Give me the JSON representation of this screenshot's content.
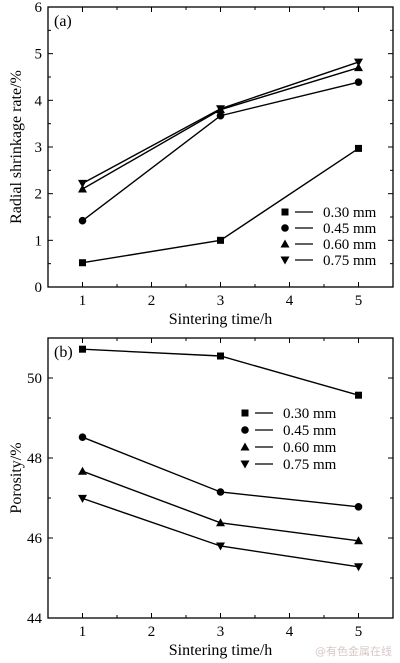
{
  "chart_data": [
    {
      "panel": "(a)",
      "type": "line",
      "x": [
        1,
        3,
        5
      ],
      "xticks": [
        "1",
        "2",
        "3",
        "4",
        "5"
      ],
      "xlabel": "Sintering time/h",
      "ylabel": "Radial shrinkage rate/%",
      "xlim": [
        0.5,
        5.5
      ],
      "ylim": [
        0,
        6
      ],
      "yticks": [
        "0",
        "1",
        "2",
        "3",
        "4",
        "5",
        "6"
      ],
      "legend_position": "bottom-right",
      "series": [
        {
          "name": "0.30 mm",
          "marker": "square",
          "values": [
            0.52,
            1.0,
            2.97
          ]
        },
        {
          "name": "0.45 mm",
          "marker": "circle",
          "values": [
            1.42,
            3.67,
            4.39
          ]
        },
        {
          "name": "0.60 mm",
          "marker": "triangle-up",
          "values": [
            2.1,
            3.8,
            4.7
          ]
        },
        {
          "name": "0.75 mm",
          "marker": "triangle-down",
          "values": [
            2.22,
            3.82,
            4.82
          ]
        }
      ]
    },
    {
      "panel": "(b)",
      "type": "line",
      "x": [
        1,
        3,
        5
      ],
      "xticks": [
        "1",
        "2",
        "3",
        "4",
        "5"
      ],
      "xlabel": "Sintering time/h",
      "ylabel": "Porosity/%",
      "xlim": [
        0.5,
        5.5
      ],
      "ylim": [
        44,
        51
      ],
      "yticks": [
        "44",
        "46",
        "48",
        "50"
      ],
      "legend_position": "top-right",
      "series": [
        {
          "name": "0.30 mm",
          "marker": "square",
          "values": [
            50.72,
            50.55,
            49.57
          ]
        },
        {
          "name": "0.45 mm",
          "marker": "circle",
          "values": [
            48.52,
            47.15,
            46.78
          ]
        },
        {
          "name": "0.60 mm",
          "marker": "triangle-up",
          "values": [
            47.67,
            46.38,
            45.93
          ]
        },
        {
          "name": "0.75 mm",
          "marker": "triangle-down",
          "values": [
            46.99,
            45.8,
            45.28
          ]
        }
      ]
    }
  ],
  "watermark": "@有色金属在线"
}
